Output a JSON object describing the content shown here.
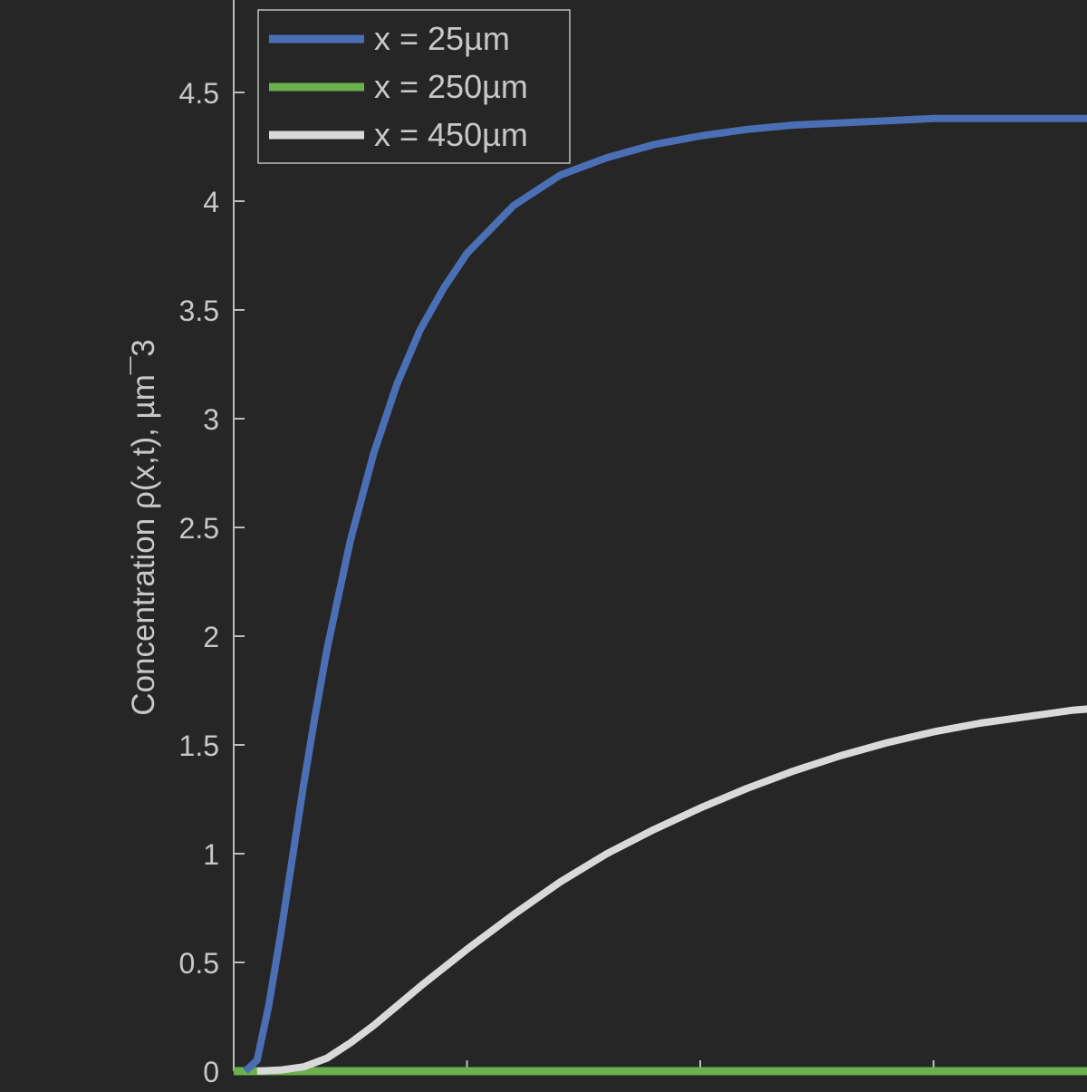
{
  "chart_data": {
    "type": "line",
    "title": "",
    "xlabel": "",
    "ylabel": "Concentration ρ(x,t), µm¯3",
    "ylim": [
      0,
      5
    ],
    "xlim": [
      0,
      3.72
    ],
    "grid": false,
    "legend_position": "top-left",
    "y_ticks": [
      "0",
      "0.5",
      "1",
      "1.5",
      "2",
      "2.5",
      "3",
      "3.5",
      "4",
      "4.5"
    ],
    "y_tick_values": [
      0,
      0.5,
      1,
      1.5,
      2,
      2.5,
      3,
      3.5,
      4,
      4.5
    ],
    "x_tick_values": [
      1,
      2,
      3
    ],
    "x_tick_labels_visible": false,
    "series": [
      {
        "name": "x = 25µm",
        "color": "#4a6fb5",
        "x": [
          0.05,
          0.1,
          0.15,
          0.2,
          0.25,
          0.3,
          0.35,
          0.4,
          0.5,
          0.6,
          0.7,
          0.8,
          0.9,
          1.0,
          1.2,
          1.4,
          1.6,
          1.8,
          2.0,
          2.2,
          2.4,
          2.6,
          2.8,
          3.0,
          3.2,
          3.4,
          3.6,
          3.72
        ],
        "y": [
          0.0,
          0.05,
          0.3,
          0.62,
          0.97,
          1.32,
          1.64,
          1.94,
          2.44,
          2.84,
          3.16,
          3.41,
          3.6,
          3.76,
          3.98,
          4.12,
          4.2,
          4.26,
          4.3,
          4.33,
          4.35,
          4.36,
          4.37,
          4.38,
          4.38,
          4.38,
          4.38,
          4.38
        ]
      },
      {
        "name": "x = 250µm",
        "color": "#6ab04c",
        "x": [
          0.0,
          3.72
        ],
        "y": [
          0.0,
          0.0
        ]
      },
      {
        "name": "x = 450µm",
        "color": "#d9d9d9",
        "x": [
          0.1,
          0.2,
          0.3,
          0.4,
          0.5,
          0.6,
          0.7,
          0.8,
          1.0,
          1.2,
          1.4,
          1.6,
          1.8,
          2.0,
          2.2,
          2.4,
          2.6,
          2.8,
          3.0,
          3.2,
          3.4,
          3.6,
          3.72
        ],
        "y": [
          0.0,
          0.005,
          0.02,
          0.06,
          0.13,
          0.21,
          0.3,
          0.39,
          0.56,
          0.72,
          0.87,
          1.0,
          1.11,
          1.21,
          1.3,
          1.38,
          1.45,
          1.51,
          1.56,
          1.6,
          1.63,
          1.66,
          1.67
        ]
      }
    ]
  },
  "colors": {
    "background": "#262626",
    "axis": "#bdbdbd",
    "text": "#c8c8c8",
    "legend_border": "#bdbdbd"
  }
}
